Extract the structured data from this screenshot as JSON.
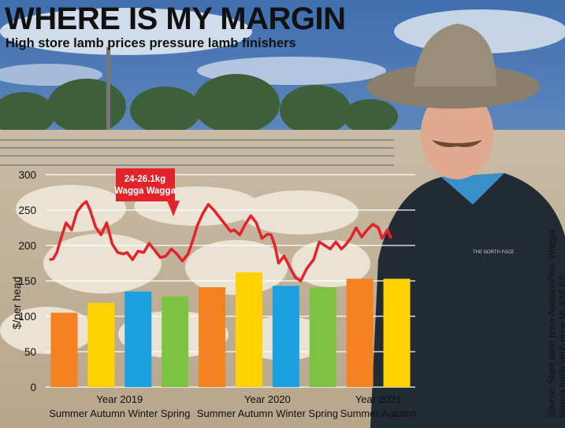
{
  "headline": "WHERE IS MY MARGIN",
  "subhead": "High store lamb prices pressure lamb finishers",
  "source": {
    "line1": "Source: Store lamb price AuctionsPlus; Wagga",
    "line2": "Wagga trade lamb price MLA/NLRS"
  },
  "colors": {
    "Summer": "#f58220",
    "Autumn": "#ffd200",
    "Winter": "#1ba0e1",
    "Spring": "#7dc242",
    "line": "#e3232a",
    "callout": "#e3232a"
  },
  "chart_data": {
    "type": "bar",
    "ylabel": "$/per head",
    "ylim": [
      0,
      300
    ],
    "yticks": [
      0,
      50,
      100,
      150,
      200,
      250,
      300
    ],
    "categories": [
      "Summer",
      "Autumn",
      "Winter",
      "Spring",
      "Summer",
      "Autumn",
      "Winter",
      "Spring",
      "Summer",
      "Autumn"
    ],
    "category_labels": [
      {
        "year": "Year 2019",
        "seasons": "Summer Autumn Winter Spring"
      },
      {
        "year": "Year 2020",
        "seasons": "Summer Autumn Winter Spring"
      },
      {
        "year": "Year 2021",
        "seasons": "Summer Autumn"
      }
    ],
    "bars": [
      {
        "season": "Summer",
        "value": 105
      },
      {
        "season": "Autumn",
        "value": 119
      },
      {
        "season": "Winter",
        "value": 135
      },
      {
        "season": "Spring",
        "value": 128
      },
      {
        "season": "Summer",
        "value": 141
      },
      {
        "season": "Autumn",
        "value": 162
      },
      {
        "season": "Winter",
        "value": 143
      },
      {
        "season": "Spring",
        "value": 141
      },
      {
        "season": "Summer",
        "value": 153
      },
      {
        "season": "Autumn",
        "value": 153
      }
    ],
    "line_series": {
      "label": "24-26.1kg Wagga Wagga",
      "x": [
        0,
        0.1,
        0.2,
        0.3,
        0.45,
        0.6,
        0.75,
        0.9,
        1.0,
        1.1,
        1.25,
        1.4,
        1.55,
        1.7,
        1.85,
        2.0,
        2.1,
        2.25,
        2.4,
        2.55,
        2.7,
        2.85,
        3.0,
        3.15,
        3.3,
        3.45,
        3.6,
        3.75,
        3.9,
        4.0,
        4.15,
        4.3,
        4.45,
        4.6,
        4.75,
        4.9,
        5.0,
        5.15,
        5.3,
        5.45,
        5.6,
        5.75,
        5.9,
        6.0,
        6.1,
        6.2,
        6.35,
        6.5,
        6.65,
        6.8,
        6.95,
        7.0,
        7.15,
        7.3,
        7.45,
        7.6,
        7.75,
        7.9,
        8.0,
        8.15,
        8.3,
        8.45,
        8.6,
        8.75,
        8.9,
        9.0,
        9.15,
        9.25
      ],
      "values": [
        180,
        181,
        190,
        208,
        232,
        222,
        248,
        258,
        262,
        250,
        226,
        215,
        232,
        202,
        190,
        188,
        190,
        180,
        192,
        190,
        203,
        193,
        183,
        185,
        195,
        188,
        178,
        188,
        210,
        228,
        245,
        258,
        250,
        240,
        230,
        220,
        222,
        215,
        230,
        242,
        232,
        210,
        216,
        215,
        200,
        175,
        185,
        170,
        155,
        150,
        166,
        170,
        180,
        205,
        200,
        195,
        205,
        195,
        200,
        210,
        225,
        212,
        222,
        230,
        225,
        210,
        222,
        210
      ]
    },
    "grid": true
  }
}
